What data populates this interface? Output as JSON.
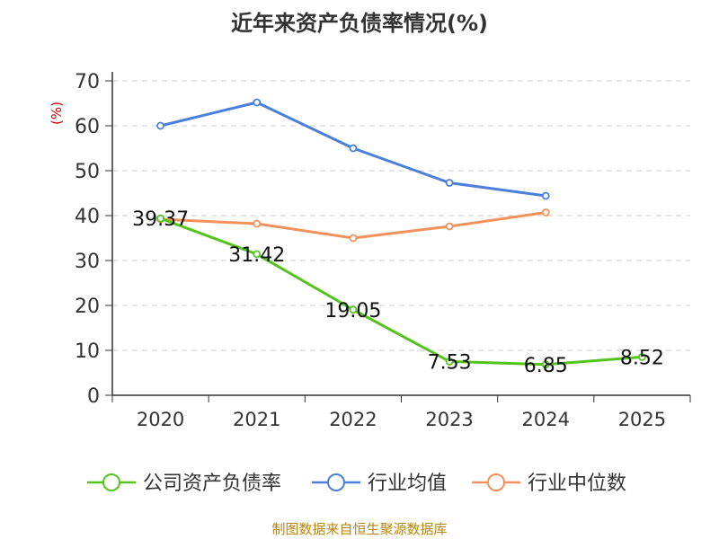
{
  "title": "近年来资产负债率情况(%)",
  "footer": "制图数据来自恒生聚源数据库",
  "chart_data": {
    "type": "line",
    "title": "近年来资产负债率情况(%)",
    "ylabel": "(%)",
    "xlabel": "",
    "categories": [
      "2020",
      "2021",
      "2022",
      "2023",
      "2024",
      "2025"
    ],
    "ylim": [
      0,
      70
    ],
    "yticks": [
      0,
      10,
      20,
      30,
      40,
      50,
      60,
      70
    ],
    "grid": "horizontal-dashed",
    "legend_position": "bottom",
    "series": [
      {
        "name": "公司资产负债率",
        "color": "#52c41a",
        "show_labels": true,
        "values": [
          39.37,
          31.42,
          19.05,
          7.53,
          6.85,
          8.52
        ]
      },
      {
        "name": "行业均值",
        "color": "#4a7fdc",
        "show_labels": false,
        "values": [
          60.0,
          65.2,
          55.0,
          47.3,
          44.4,
          null
        ]
      },
      {
        "name": "行业中位数",
        "color": "#f4915b",
        "show_labels": false,
        "values": [
          39.2,
          38.2,
          35.0,
          37.6,
          40.7,
          null
        ]
      }
    ]
  }
}
